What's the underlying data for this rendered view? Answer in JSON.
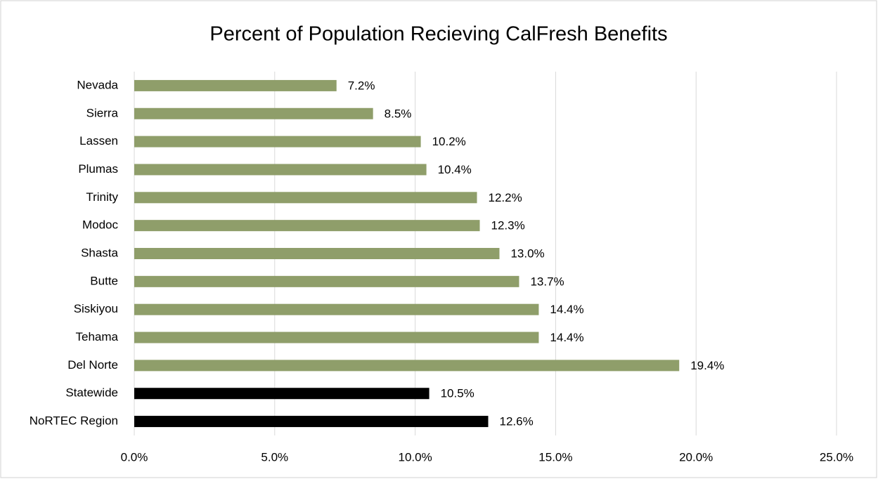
{
  "chart_data": {
    "type": "bar",
    "orientation": "horizontal",
    "title": "Percent of Population Recieving CalFresh Benefits",
    "categories": [
      "Nevada",
      "Sierra",
      "Lassen",
      "Plumas",
      "Trinity",
      "Modoc",
      "Shasta",
      "Butte",
      "Siskiyou",
      "Tehama",
      "Del Norte",
      "Statewide",
      "NoRTEC Region"
    ],
    "values": [
      7.2,
      8.5,
      10.2,
      10.4,
      12.2,
      12.3,
      13.0,
      13.7,
      14.4,
      14.4,
      19.4,
      10.5,
      12.6
    ],
    "value_labels": [
      "7.2%",
      "8.5%",
      "10.2%",
      "10.4%",
      "12.2%",
      "12.3%",
      "13.0%",
      "13.7%",
      "14.4%",
      "14.4%",
      "19.4%",
      "10.5%",
      "12.6%"
    ],
    "colors": [
      "#8f9e6a",
      "#8f9e6a",
      "#8f9e6a",
      "#8f9e6a",
      "#8f9e6a",
      "#8f9e6a",
      "#8f9e6a",
      "#8f9e6a",
      "#8f9e6a",
      "#8f9e6a",
      "#8f9e6a",
      "#000000",
      "#000000"
    ],
    "xlim": [
      0,
      25
    ],
    "xticks": [
      {
        "value": 0,
        "label": "0.0%"
      },
      {
        "value": 5,
        "label": "5.0%"
      },
      {
        "value": 10,
        "label": "10.0%"
      },
      {
        "value": 15,
        "label": "15.0%"
      },
      {
        "value": 20,
        "label": "20.0%"
      },
      {
        "value": 25,
        "label": "25.0%"
      }
    ],
    "grid": true
  }
}
